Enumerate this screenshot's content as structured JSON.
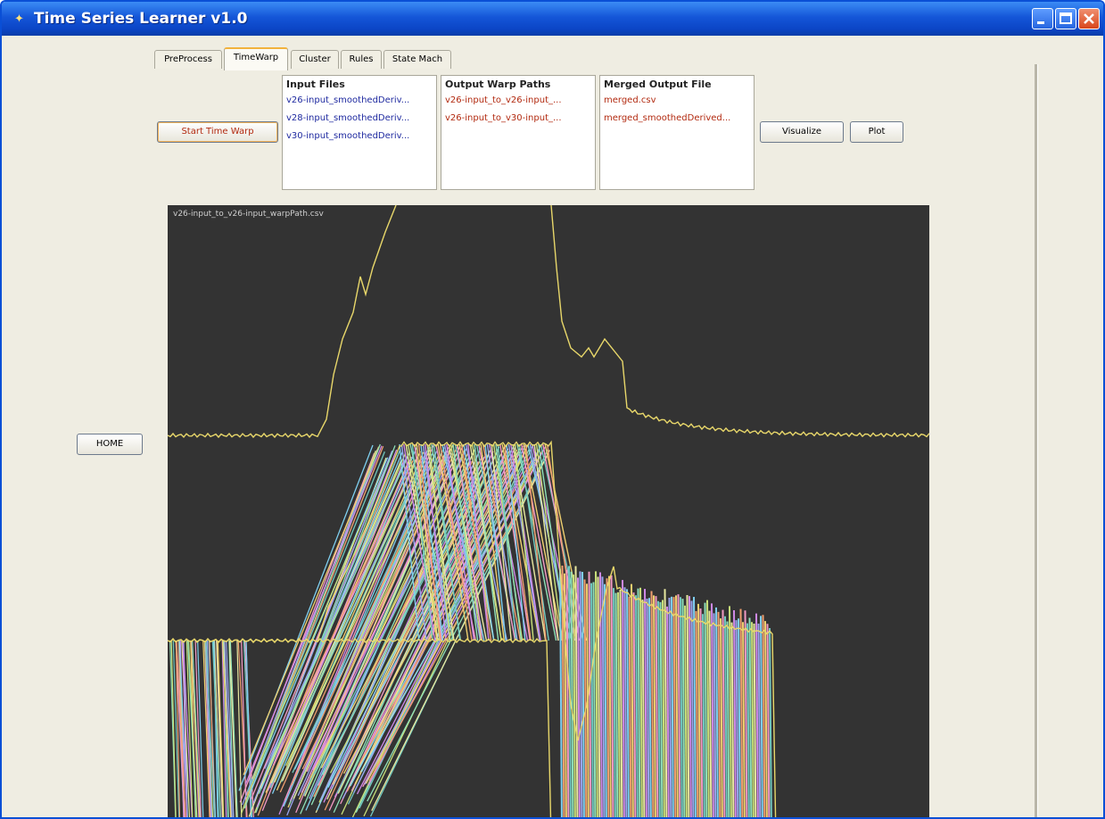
{
  "window": {
    "title": "Time Series Learner v1.0"
  },
  "tabs": [
    {
      "label": "PreProcess"
    },
    {
      "label": "TimeWarp",
      "active": true
    },
    {
      "label": "Cluster"
    },
    {
      "label": "Rules"
    },
    {
      "label": "State Mach"
    }
  ],
  "buttons": {
    "start_time_warp": "Start Time Warp",
    "visualize": "Visualize",
    "plot": "Plot",
    "home": "HOME"
  },
  "input_files": {
    "header": "Input Files",
    "items": [
      "v26-input_smoothedDeriv...",
      "v28-input_smoothedDeriv...",
      "v30-input_smoothedDeriv..."
    ]
  },
  "output_warp_paths": {
    "header": "Output Warp Paths",
    "items": [
      "v26-input_to_v26-input_...",
      "v26-input_to_v30-input_..."
    ]
  },
  "merged_output": {
    "header": "Merged Output File",
    "items": [
      "merged.csv",
      "merged_smoothedDerived..."
    ]
  },
  "plot": {
    "label": "v26-input_to_v26-input_warpPath.csv"
  },
  "colors": {
    "title_bar": "#0b45c6",
    "client_bg": "#efede2",
    "plot_bg": "#333333",
    "signal_line": "#e8d76a",
    "list_blue": "#1f2aa0",
    "list_red": "#b22a10"
  },
  "icons": [
    "app-icon",
    "minimize-icon",
    "maximize-icon",
    "close-icon"
  ]
}
